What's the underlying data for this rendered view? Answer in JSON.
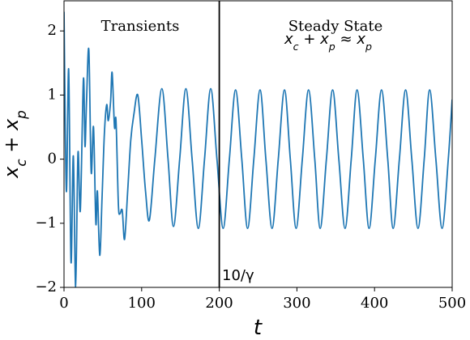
{
  "chart_data": {
    "type": "line",
    "xlabel": "t",
    "ylabel": "x_c + x_p",
    "annotations": {
      "transients": "Transients",
      "steady": "Steady State",
      "approx": "x_c + x_p ≈ x_p",
      "marker": "10/γ"
    },
    "vline": 200,
    "xlim": [
      0,
      500
    ],
    "xticks": [
      0,
      100,
      200,
      300,
      400,
      500
    ],
    "ylim": [
      -2,
      2.47
    ],
    "yticks": [
      {
        "value": -2,
        "label": "−2"
      },
      {
        "value": -1,
        "label": "−1"
      },
      0,
      1,
      2
    ],
    "x": [
      0,
      3,
      6,
      9,
      12,
      15,
      18,
      21,
      25,
      27,
      29,
      32,
      35,
      38,
      41,
      43,
      46,
      49,
      52,
      55,
      57,
      60,
      62,
      65,
      67,
      70,
      72,
      75,
      78,
      82,
      86,
      90,
      95,
      100,
      105,
      110,
      117,
      126,
      134,
      141,
      149,
      157,
      165,
      173,
      181,
      189,
      197,
      205,
      213,
      221,
      229,
      236.5,
      244.5,
      252.5,
      260,
      268,
      276,
      284,
      291.5,
      299,
      307,
      315,
      323,
      330,
      338,
      346,
      354,
      362,
      370,
      377.5,
      385.5,
      393,
      401,
      409,
      417,
      424,
      432,
      440,
      448,
      456,
      464,
      471,
      479,
      487,
      495,
      500
    ],
    "series": [
      {
        "color": "#1f77b4",
        "values": [
          2.3,
          -0.5,
          1.4,
          -1.6,
          0.05,
          -2.0,
          0.1,
          -0.8,
          1.25,
          0.2,
          0.9,
          1.7,
          -0.2,
          0.5,
          -1.0,
          -0.5,
          -1.5,
          -0.6,
          0.4,
          0.85,
          0.6,
          0.9,
          1.35,
          0.5,
          0.6,
          -0.7,
          -0.85,
          -0.8,
          -1.25,
          -0.5,
          0.3,
          0.7,
          1.0,
          0.3,
          -0.5,
          -0.95,
          0.0,
          1.1,
          0.0,
          -1.05,
          0.0,
          1.1,
          0.0,
          -1.08,
          0.0,
          1.1,
          0.0,
          -1.08,
          0,
          1.08,
          0,
          -1.08,
          0,
          1.08,
          0,
          -1.08,
          0,
          1.08,
          0,
          -1.08,
          0,
          1.08,
          0,
          -1.08,
          0,
          1.08,
          0,
          -1.08,
          0,
          1.08,
          0,
          -1.08,
          0,
          1.08,
          0,
          -1.08,
          0,
          1.08,
          0,
          -1.08,
          0,
          1.08,
          0,
          -1.08,
          0,
          0.93
        ]
      }
    ]
  }
}
